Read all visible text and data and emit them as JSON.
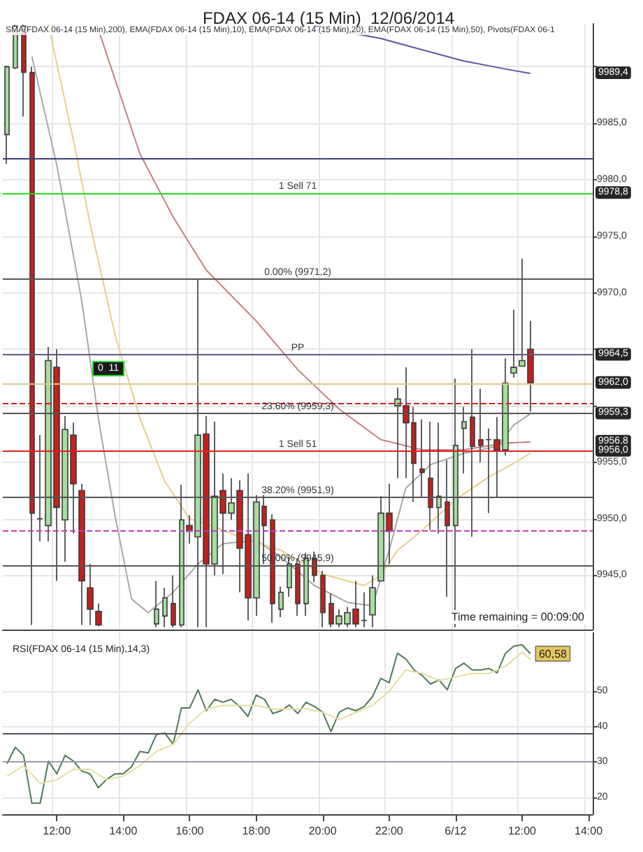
{
  "chart_data": [
    {
      "type": "candlestick",
      "title": "FDAX 06-14 (15 Min)  12/06/2014",
      "categories": [
        null,
        null,
        null,
        null,
        null,
        null,
        null,
        null,
        null,
        null,
        null,
        null,
        null,
        null,
        null,
        null,
        null,
        null,
        null,
        null,
        null,
        null,
        null,
        null,
        null,
        null,
        null,
        null,
        null,
        null,
        null,
        null,
        null,
        null,
        null,
        null,
        null,
        null,
        null,
        null,
        null,
        null,
        null,
        null,
        null,
        null,
        null,
        null,
        null,
        null,
        null,
        null,
        null,
        null,
        null,
        null,
        null,
        null,
        null,
        null,
        null,
        null,
        null,
        null,
        null,
        null,
        null,
        null,
        null,
        null,
        null
      ],
      "colors": [
        "#a6dea0",
        "#a6dea0",
        "#c4201c",
        "#c4201c",
        "#3a3a3a",
        "#a6dea0",
        "#c4201c",
        "#a6dea0",
        "#c4201c",
        "#c4201c",
        "#c4201c",
        "#c4201c",
        null,
        null,
        null,
        null,
        null,
        null,
        "#a6dea0",
        "#a6dea0",
        "#c4201c",
        "#a6dea0",
        "#c4201c",
        "#a6dea0",
        "#c4201c",
        "#a6dea0",
        "#c4201c",
        "#a6dea0",
        "#c4201c",
        "#c4201c",
        "#a6dea0",
        "#c4201c",
        "#c4201c",
        "#a6dea0",
        "#a6dea0",
        "#c4201c",
        "#a6dea0",
        "#c4201c",
        "#c4201c",
        "#c4201c",
        "#a6dea0",
        "#a6dea0",
        "#c4201c",
        "#3a3a3a",
        "#a6dea0",
        "#a6dea0",
        "#c4201c",
        "#a6dea0",
        "#c4201c",
        "#c4201c",
        "#c4201c",
        "#c4201c",
        "#a6dea0",
        "#c4201c",
        "#a6dea0",
        "#a6dea0",
        "#c4201c",
        "#c4201c",
        "#3a3a3a",
        "#c4201c",
        "#a6dea0",
        "#a6dea0",
        "#a6dea0",
        "#c4201c",
        null,
        null,
        null,
        null,
        null,
        null,
        null
      ],
      "ohlc": [
        [
          9984.0,
          9990.1,
          9981.4,
          9990.0
        ],
        [
          9989.9,
          9993.7,
          9989.8,
          9993.6
        ],
        [
          9993.6,
          9993.7,
          9985.6,
          9989.5
        ],
        [
          9989.5,
          9990.0,
          9940.6,
          9950.5
        ],
        [
          9950.0,
          9957.4,
          9948.0,
          9950.0
        ],
        [
          9949.4,
          9965.2,
          9948.0,
          9964.0
        ],
        [
          9963.4,
          9965.0,
          9944.5,
          9951.0
        ],
        [
          9949.9,
          9959.1,
          9946.2,
          9957.9
        ],
        [
          9957.4,
          9958.5,
          9948.7,
          9953.1
        ],
        [
          9952.5,
          9953.1,
          9940.6,
          9944.5
        ],
        [
          9943.9,
          9946.0,
          9940.6,
          9942.0
        ],
        [
          9941.8,
          9942.5,
          9940.5,
          9940.6
        ],
        null,
        null,
        null,
        null,
        null,
        null,
        [
          9940.7,
          9944.5,
          9940.4,
          9942.0
        ],
        [
          9941.4,
          9943.9,
          9940.4,
          9943.0
        ],
        [
          9942.5,
          9945.0,
          9940.4,
          9940.6
        ],
        [
          9940.6,
          9953.0,
          9940.4,
          9949.9
        ],
        [
          9949.4,
          9950.3,
          9947.8,
          9948.9
        ],
        [
          9948.4,
          9971.2,
          9940.4,
          9957.4
        ],
        [
          9957.5,
          9959.1,
          9940.4,
          9946.0
        ],
        [
          9946.0,
          9958.6,
          9945.0,
          9952.0
        ],
        [
          9952.5,
          9954.0,
          9945.1,
          9950.5
        ],
        [
          9950.5,
          9953.6,
          9949.9,
          9951.4
        ],
        [
          9952.5,
          9953.4,
          9943.5,
          9947.4
        ],
        [
          9948.6,
          9954.0,
          9941.0,
          9943.0
        ],
        [
          9943.0,
          9952.1,
          9941.4,
          9951.5
        ],
        [
          9951.1,
          9952.1,
          9946.0,
          9949.4
        ],
        [
          9949.9,
          9950.4,
          9940.8,
          9942.5
        ],
        [
          9942.0,
          9944.0,
          9941.3,
          9943.5
        ],
        [
          9943.9,
          9946.6,
          9943.1,
          9946.0
        ],
        [
          9946.0,
          9946.5,
          9941.4,
          9942.5
        ],
        [
          9942.5,
          9947.0,
          9941.4,
          9946.5
        ],
        [
          9946.5,
          9947.1,
          9944.4,
          9945.0
        ],
        [
          9945.0,
          9945.4,
          9940.4,
          9941.7
        ],
        [
          9942.5,
          9943.4,
          9940.4,
          9940.7
        ],
        [
          9940.7,
          9942.0,
          9940.4,
          9941.4
        ],
        [
          9940.7,
          9942.2,
          9940.4,
          9941.7
        ],
        [
          9942.0,
          9944.5,
          9940.4,
          9940.7
        ],
        [
          9941.0,
          9943.5,
          9940.4,
          9941.0
        ],
        [
          9941.5,
          9945.0,
          9940.4,
          9943.9
        ],
        [
          9944.5,
          9952.0,
          9944.5,
          9950.5
        ],
        [
          9950.5,
          9953.1,
          9946.0,
          9948.9
        ],
        [
          9960.0,
          9961.6,
          9953.6,
          9960.6
        ],
        [
          9960.0,
          9963.4,
          9953.6,
          9958.5
        ],
        [
          9958.5,
          9959.9,
          9951.5,
          9954.9
        ],
        [
          9954.4,
          9958.8,
          9951.9,
          9954.1
        ],
        [
          9953.6,
          9958.6,
          9949.0,
          9951.0
        ],
        [
          9951.0,
          9958.5,
          9948.7,
          9952.0
        ],
        [
          9951.5,
          9955.2,
          9943.1,
          9949.4
        ],
        [
          9949.4,
          9962.4,
          9940.4,
          9956.5
        ],
        [
          9958.0,
          9959.9,
          9954.0,
          9958.6
        ],
        [
          9959.0,
          9965.0,
          9948.4,
          9956.4
        ],
        [
          9957.0,
          9961.5,
          9955.0,
          9956.5
        ],
        [
          9957.0,
          9958.0,
          9950.5,
          9957.0
        ],
        [
          9957.0,
          9959.0,
          9951.9,
          9956.1
        ],
        [
          9956.1,
          9964.2,
          9955.6,
          9962.0
        ],
        [
          9962.9,
          9968.5,
          9962.5,
          9963.4
        ],
        [
          9963.5,
          9973.0,
          9963.5,
          9964.0
        ],
        [
          9965.0,
          9967.5,
          9959.5,
          9962.0
        ],
        null,
        null,
        null,
        null,
        null,
        null,
        null
      ],
      "series": [
        {
          "type": "line",
          "color": "#5a5aa0",
          "values": [
            null,
            null,
            null,
            null,
            null,
            null,
            null,
            null,
            null,
            null,
            null,
            null,
            null,
            null,
            null,
            null,
            null,
            null,
            null,
            null,
            null,
            null,
            null,
            null,
            null,
            null,
            null,
            null,
            null,
            null,
            null,
            null,
            null,
            null,
            null,
            null,
            null,
            9993.6,
            null,
            null,
            null,
            null,
            null,
            null,
            null,
            9992.5,
            null,
            null,
            null,
            null,
            9991.5,
            null,
            null,
            null,
            null,
            9990.5,
            null,
            null,
            null,
            null,
            9989.8,
            null,
            null,
            9989.4,
            null,
            null,
            null,
            null,
            null,
            null,
            null
          ]
        },
        {
          "type": "line",
          "color": "#a8a8a8",
          "values": [
            null,
            null,
            null,
            9990.9,
            null,
            null,
            9981.3,
            null,
            null,
            9969.3,
            null,
            9958.9,
            null,
            9950.3,
            null,
            9942.9,
            null,
            9941.7,
            null,
            null,
            9943.5,
            null,
            null,
            9946.0,
            null,
            null,
            9947.8,
            null,
            null,
            null,
            9948.1,
            null,
            null,
            9946.6,
            null,
            null,
            null,
            9944.1,
            null,
            null,
            null,
            9942.6,
            null,
            null,
            9942.3,
            null,
            9947.2,
            null,
            9952.7,
            null,
            null,
            9954.8,
            null,
            null,
            null,
            9955.8,
            null,
            null,
            null,
            9956.4,
            null,
            9958.3,
            null,
            9959.3,
            null,
            null,
            null,
            null,
            null,
            null,
            null
          ]
        },
        {
          "type": "line",
          "color": "#e6cf8c",
          "values": [
            null,
            null,
            null,
            null,
            null,
            9993.7,
            null,
            null,
            9983.5,
            null,
            9976.1,
            null,
            null,
            9966.3,
            null,
            null,
            9958.9,
            null,
            null,
            9953.3,
            null,
            null,
            9950.0,
            null,
            null,
            9949.3,
            null,
            null,
            9948.4,
            null,
            null,
            null,
            null,
            9947.2,
            null,
            null,
            null,
            null,
            9945.1,
            null,
            null,
            null,
            null,
            9944.1,
            null,
            9945.0,
            null,
            9947.2,
            null,
            null,
            9949.0,
            null,
            null,
            null,
            9951.7,
            null,
            null,
            null,
            9953.7,
            null,
            null,
            9954.9,
            null,
            9955.8,
            null,
            null,
            null,
            null,
            null,
            null,
            null
          ]
        },
        {
          "type": "line",
          "color": "#c48080",
          "values": [
            null,
            null,
            null,
            null,
            null,
            null,
            null,
            null,
            null,
            null,
            null,
            9993.3,
            null,
            null,
            null,
            null,
            9982.3,
            null,
            null,
            null,
            9976.7,
            null,
            null,
            null,
            9972.0,
            null,
            null,
            null,
            null,
            null,
            9967.5,
            null,
            null,
            null,
            null,
            9963.2,
            null,
            null,
            null,
            null,
            9959.7,
            null,
            null,
            null,
            null,
            9957.0,
            null,
            null,
            null,
            null,
            9956.1,
            null,
            null,
            null,
            null,
            9956.1,
            null,
            null,
            null,
            null,
            9956.7,
            null,
            null,
            9956.8,
            null,
            null,
            null,
            null,
            null,
            null,
            null
          ]
        }
      ],
      "ylim": [
        9940.2,
        9993.8
      ],
      "yticks": [
        {
          "value": 9945,
          "label": "9945,0"
        },
        {
          "value": 9950,
          "label": "9950,0"
        },
        {
          "value": 9955,
          "label": "9955,0"
        },
        {
          "value": 9960,
          "label": null
        },
        {
          "value": 9965,
          "label": null
        },
        {
          "value": 9970,
          "label": "9970,0"
        },
        {
          "value": 9975,
          "label": "9975,0"
        },
        {
          "value": 9980,
          "label": "9980,0"
        },
        {
          "value": 9985,
          "label": "9985,0"
        },
        {
          "value": 9990,
          "label": null
        }
      ],
      "ref_lines": [
        {
          "axis": "y",
          "value": 9981.9,
          "color": "#3c3c7a"
        },
        {
          "axis": "y",
          "value": 9978.8,
          "label": "1 Sell 71",
          "color": "#22dd22"
        },
        {
          "axis": "y",
          "value": 9971.2,
          "label": "0.00% (9971,2)",
          "color": "#555555"
        },
        {
          "axis": "y",
          "value": 9964.5,
          "label": "PP",
          "color": "#5a5a80"
        },
        {
          "axis": "y",
          "value": 9962.0,
          "color": "#d8c890"
        },
        {
          "axis": "y",
          "value": 9960.2,
          "color": "#d02020",
          "line_style": "dashed"
        },
        {
          "axis": "y",
          "value": 9959.3,
          "label": "23.60% (9959,3)",
          "color": "#555555"
        },
        {
          "axis": "y",
          "value": 9956.0,
          "label": "1 Sell 51",
          "color": "#e02020"
        },
        {
          "axis": "y",
          "value": 9951.9,
          "label": "38.20% (9951,9)",
          "color": "#555555"
        },
        {
          "axis": "y",
          "value": 9948.9,
          "color": "#c040c0",
          "line_style": "dashed"
        },
        {
          "axis": "y",
          "value": 9945.9,
          "label": "50.00% (9945,9)",
          "color": "#555555"
        }
      ],
      "annotations": [
        "SMA(FDAX 06-14 (15 Min),200), EMA(FDAX 06-14 (15 Min),10), EMA(FDAX 06-14 (15 Min),20), EMA(FDAX 06-14 (15 Min),50), Pivots(FDAX 06-1",
        "Time remaining = 00:09:00",
        "0  11",
        {
          "text": "9989,4",
          "y": 9989.4
        },
        {
          "text": "9978,8",
          "y": 9978.8
        },
        {
          "text": "9964,5",
          "y": 9964.5
        },
        {
          "text": "9962,0",
          "y": 9962.0
        },
        {
          "text": "9959,3",
          "y": 9959.3
        },
        {
          "text": "9956,8",
          "y": 9956.8
        },
        {
          "text": "9956,0",
          "y": 9956.0
        }
      ],
      "grid": true,
      "tick_labels": "y"
    },
    {
      "type": "line",
      "title": "RSI(FDAX 06-14 (15 Min),14,3)",
      "categories": [
        null,
        null,
        null,
        null,
        null,
        null,
        "12:00",
        null,
        null,
        null,
        null,
        null,
        null,
        null,
        "14:00",
        null,
        null,
        null,
        null,
        null,
        null,
        null,
        "16:00",
        null,
        null,
        null,
        null,
        null,
        null,
        null,
        "18:00",
        null,
        null,
        null,
        null,
        null,
        null,
        null,
        "20:00",
        null,
        null,
        null,
        null,
        null,
        null,
        null,
        "22:00",
        null,
        null,
        null,
        null,
        null,
        null,
        null,
        "6/12",
        null,
        null,
        null,
        null,
        null,
        null,
        null,
        "12:00",
        null,
        null,
        null,
        null,
        null,
        null,
        null,
        "14:00"
      ],
      "series": [
        {
          "color": "#4f7a55",
          "values": [
            29.5,
            34.2,
            31.9,
            18.4,
            18.4,
            30.3,
            26.7,
            31.9,
            30.3,
            27.5,
            26.7,
            22.8,
            25.1,
            26.7,
            26.7,
            28.7,
            33.0,
            32.6,
            37.8,
            38.2,
            35.0,
            45.3,
            45.3,
            50.4,
            44.5,
            47.7,
            46.9,
            47.7,
            45.7,
            42.9,
            48.9,
            47.7,
            43.7,
            44.5,
            46.1,
            43.7,
            46.9,
            45.7,
            44.1,
            38.6,
            44.1,
            45.3,
            44.5,
            45.7,
            48.5,
            53.6,
            52.4,
            60.7,
            59.1,
            56.0,
            54.4,
            52.0,
            53.2,
            50.4,
            56.4,
            57.9,
            56.0,
            56.0,
            56.4,
            55.2,
            60.7,
            62.7,
            63.1,
            60.58,
            null,
            null,
            null,
            null,
            null,
            null,
            null
          ],
          "value_labels": [
            null,
            null,
            null,
            null,
            null,
            null,
            null,
            null,
            null,
            null,
            null,
            null,
            null,
            null,
            null,
            null,
            null,
            null,
            null,
            null,
            null,
            null,
            null,
            null,
            null,
            null,
            null,
            null,
            null,
            null,
            null,
            null,
            null,
            null,
            null,
            null,
            null,
            null,
            null,
            null,
            null,
            null,
            null,
            null,
            null,
            null,
            null,
            null,
            null,
            null,
            null,
            null,
            null,
            null,
            null,
            null,
            null,
            null,
            null,
            null,
            null,
            null,
            null,
            "60,58",
            null,
            null,
            null,
            null,
            null,
            null,
            null
          ]
        },
        {
          "color": "#e4e0a0",
          "values": [
            26,
            null,
            29,
            null,
            24,
            null,
            25,
            null,
            28,
            null,
            28,
            null,
            25,
            null,
            26,
            null,
            29,
            null,
            33,
            null,
            35,
            null,
            41,
            null,
            45,
            null,
            46,
            null,
            46,
            null,
            46,
            null,
            45,
            null,
            45,
            null,
            45,
            null,
            44,
            null,
            42,
            null,
            44,
            null,
            46,
            null,
            50,
            null,
            56,
            null,
            55,
            null,
            53,
            null,
            54,
            null,
            55,
            null,
            55,
            null,
            57,
            null,
            61,
            59,
            null,
            null,
            null,
            null,
            null,
            null,
            null
          ]
        }
      ],
      "ylim": [
        15.3,
        66.6
      ],
      "yticks": [
        20,
        30,
        40,
        50
      ],
      "ref_lines": [
        {
          "axis": "y",
          "value": 38.2,
          "color": "#50505e"
        },
        {
          "axis": "y",
          "value": 30,
          "color": "#9a9aa8"
        }
      ],
      "grid": true
    }
  ]
}
